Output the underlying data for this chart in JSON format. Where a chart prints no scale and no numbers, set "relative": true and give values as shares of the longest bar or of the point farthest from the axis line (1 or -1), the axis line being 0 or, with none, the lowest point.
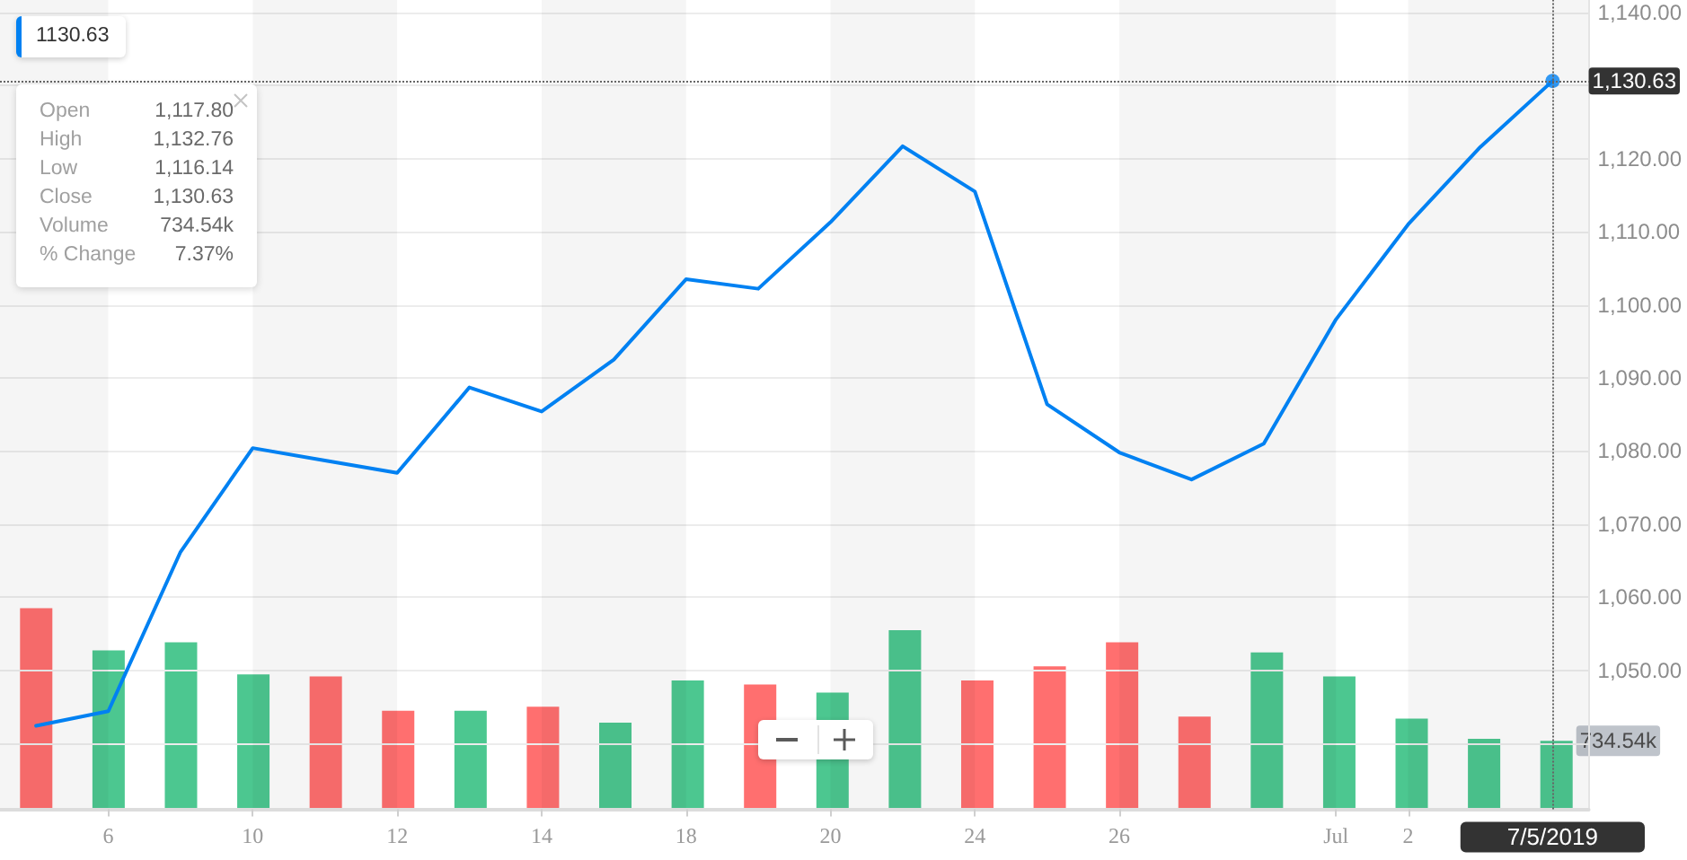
{
  "chart_data": [
    {
      "type": "line",
      "annotations": [
        "1130.63",
        "Open",
        "1,117.80",
        "High",
        "1,132.76",
        "Low",
        "1,116.14",
        "Close",
        "1,130.63",
        "Volume",
        "734.54k",
        "% Change",
        "7.37%"
      ],
      "categories": [
        null,
        "6",
        null,
        "10",
        null,
        "12",
        null,
        "14",
        null,
        "18",
        null,
        "20",
        null,
        "24",
        null,
        "26",
        null,
        null,
        "Jul",
        "2",
        null,
        "7/5/2019"
      ],
      "series": [
        {
          "color": "#0081f2",
          "values": [
            1042.4,
            1044.4,
            1066.2,
            1080.4,
            1078.7,
            1077.0,
            1088.7,
            1085.4,
            1092.5,
            1103.5,
            1102.2,
            1111.3,
            1121.7,
            1115.5,
            1086.4,
            1079.8,
            1076.1,
            1081.0,
            1098.0,
            1111.0,
            1121.6,
            1130.63
          ]
        },
        {
          "type": "scatter",
          "x": [
            "7/5/2019"
          ],
          "values": [
            1130.63
          ],
          "color": "#0081f2",
          "marker": "circle"
        }
      ],
      "ylim": [
        1031,
        1141.7
      ],
      "yticks": [
        {
          "value": 1040,
          "label": null
        },
        {
          "value": 1050,
          "label": "1,050.00"
        },
        {
          "value": 1060,
          "label": "1,060.00"
        },
        {
          "value": 1070,
          "label": "1,070.00"
        },
        {
          "value": 1080,
          "label": "1,080.00"
        },
        {
          "value": 1090,
          "label": "1,090.00"
        },
        {
          "value": 1100,
          "label": "1,100.00"
        },
        {
          "value": 1110,
          "label": "1,110.00"
        },
        {
          "value": 1120,
          "label": "1,120.00"
        },
        {
          "value": 1130,
          "label": null
        },
        {
          "value": 1140,
          "label": "1,140.00"
        }
      ],
      "ref_lines": [
        {
          "axis": "y",
          "value": 1130.63,
          "label": "1,130.63",
          "line_style": "dotted",
          "color": "#666666"
        },
        {
          "axis": "x",
          "value": "7/5/2019",
          "line_style": "dotted",
          "color": "#666666"
        }
      ],
      "grid": true,
      "marker": "none"
    },
    {
      "type": "bar",
      "relative": true,
      "categories": [
        null,
        "6",
        null,
        "10",
        null,
        "12",
        null,
        "14",
        null,
        "18",
        null,
        "20",
        null,
        "24",
        null,
        "26",
        null,
        null,
        "Jul",
        "2",
        null,
        "7/5/2019"
      ],
      "values": [
        1,
        0.79,
        0.83,
        0.67,
        0.66,
        0.49,
        0.49,
        0.51,
        0.43,
        0.64,
        0.62,
        0.58,
        0.89,
        0.64,
        0.71,
        0.83,
        0.46,
        0.78,
        0.66,
        0.45,
        0.35,
        0.34
      ],
      "colors": [
        "#ff6f6f",
        "#4cc790",
        "#4cc790",
        "#4cc790",
        "#ff6f6f",
        "#ff6f6f",
        "#4cc790",
        "#ff6f6f",
        "#4cc790",
        "#4cc790",
        "#ff6f6f",
        "#4cc790",
        "#4cc790",
        "#ff6f6f",
        "#ff6f6f",
        "#ff6f6f",
        "#ff6f6f",
        "#4cc790",
        "#4cc790",
        "#4cc790",
        "#4cc790",
        "#4cc790"
      ],
      "annotations": [
        {
          "text": "734.54k",
          "x": "7/5/2019",
          "y": 0.34
        }
      ],
      "tick_labels": false
    }
  ]
}
